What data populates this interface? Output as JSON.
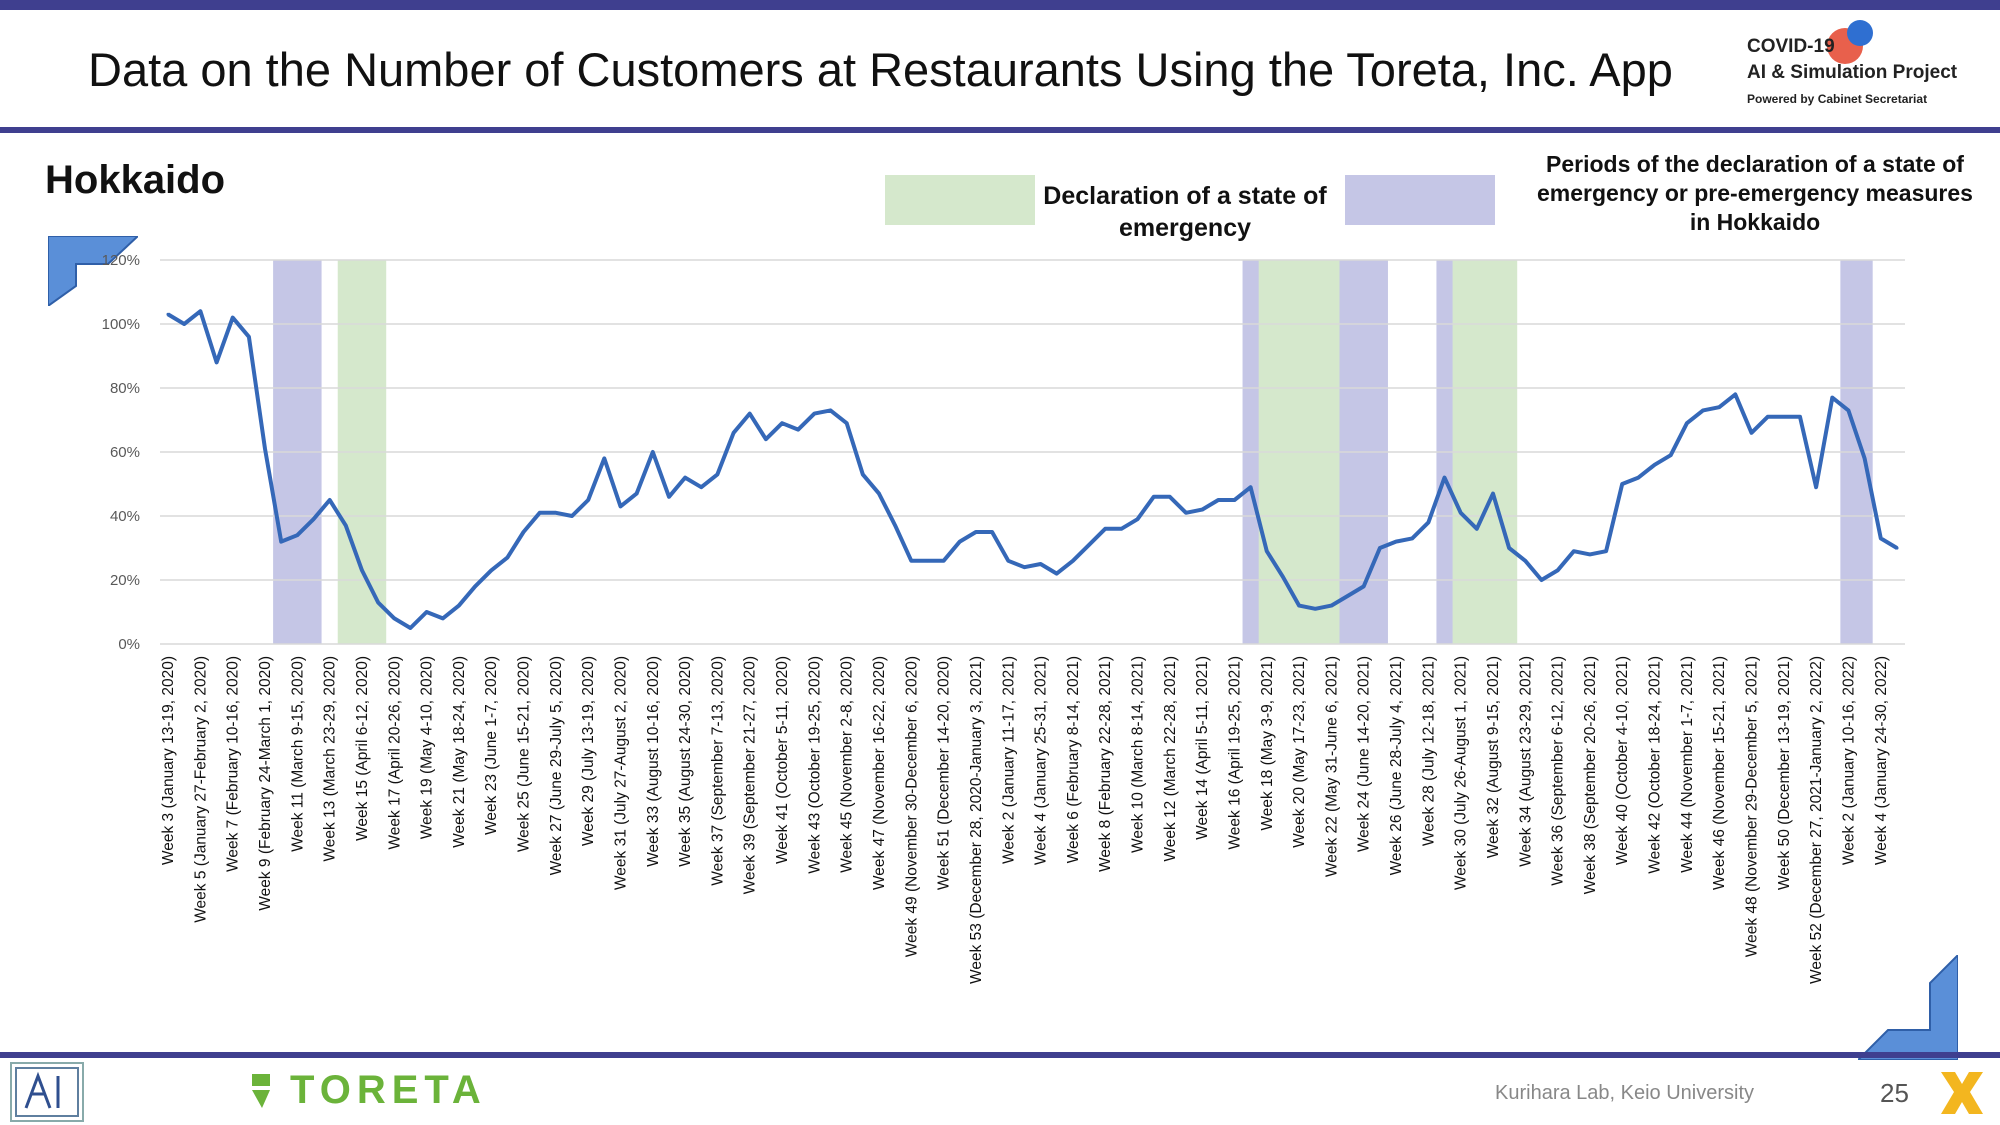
{
  "header": {
    "title": "Data on the Number of Customers at Restaurants Using the Toreta, Inc. App",
    "logo_line1": "COVID-19",
    "logo_line2": "AI & Simulation Project",
    "logo_line3": "Powered by Cabinet Secretariat"
  },
  "region": "Hokkaido",
  "legend": {
    "green_label": "Declaration of a state of emergency",
    "purple_label": "Periods of the declaration of a state of emergency or pre-emergency measures in Hokkaido"
  },
  "footer": {
    "brand": "TORETA",
    "lab": "Kurihara Lab, Keio University",
    "page": "25"
  },
  "colors": {
    "line": "#3568b8",
    "emergency": "#d5e8cc",
    "pre_emergency": "#c5c6e6",
    "accent": "#3f3f8f"
  },
  "chart_data": {
    "type": "line",
    "ylim": [
      0,
      1.2
    ],
    "yticks": [
      "0%",
      "20%",
      "40%",
      "60%",
      "80%",
      "100%",
      "120%"
    ],
    "grid": true,
    "x_labels": [
      "Week 3 (January 13-19, 2020)",
      "Week 5 (January 27-February 2, 2020)",
      "Week 7 (February 10-16, 2020)",
      "Week 9 (February 24-March 1, 2020)",
      "Week 11 (March 9-15, 2020)",
      "Week 13 (March 23-29, 2020)",
      "Week 15 (April 6-12, 2020)",
      "Week 17 (April 20-26, 2020)",
      "Week 19 (May 4-10, 2020)",
      "Week 21 (May 18-24, 2020)",
      "Week 23 (June 1-7, 2020)",
      "Week 25 (June 15-21, 2020)",
      "Week 27 (June 29-July 5, 2020)",
      "Week 29 (July 13-19, 2020)",
      "Week 31 (July 27-August 2, 2020)",
      "Week 33 (August 10-16, 2020)",
      "Week 35 (August 24-30, 2020)",
      "Week 37 (September 7-13, 2020)",
      "Week 39 (September 21-27, 2020)",
      "Week 41 (October 5-11, 2020)",
      "Week 43 (October 19-25, 2020)",
      "Week 45 (November 2-8, 2020)",
      "Week 47 (November 16-22, 2020)",
      "Week 49 (November 30-December 6, 2020)",
      "Week 51 (December 14-20, 2020)",
      "Week 53 (December 28, 2020-January 3, 2021)",
      "Week 2 (January 11-17, 2021)",
      "Week 4 (January 25-31, 2021)",
      "Week 6 (February 8-14, 2021)",
      "Week 8 (February 22-28, 2021)",
      "Week 10 (March 8-14, 2021)",
      "Week 12 (March 22-28, 2021)",
      "Week 14 (April 5-11, 2021)",
      "Week 16 (April 19-25, 2021)",
      "Week 18 (May 3-9, 2021)",
      "Week 20 (May 17-23, 2021)",
      "Week 22 (May 31-June 6, 2021)",
      "Week 24 (June 14-20, 2021)",
      "Week 26 (June 28-July 4, 2021)",
      "Week 28 (July 12-18, 2021)",
      "Week 30 (July 26-August 1, 2021)",
      "Week 32 (August 9-15, 2021)",
      "Week 34 (August 23-29, 2021)",
      "Week 36 (September 6-12, 2021)",
      "Week 38 (September 20-26, 2021)",
      "Week 40 (October 4-10, 2021)",
      "Week 42 (October 18-24, 2021)",
      "Week 44 (November 1-7, 2021)",
      "Week 46 (November 15-21, 2021)",
      "Week 48 (November 29-December 5, 2021)",
      "Week 50 (December 13-19, 2021)",
      "Week 52 (December 27, 2021-January 2, 2022)",
      "Week 2 (January 10-16, 2022)",
      "Week 4 (January 24-30, 2022)"
    ],
    "values": [
      1.03,
      1.0,
      1.04,
      0.88,
      1.02,
      0.96,
      0.61,
      0.32,
      0.34,
      0.39,
      0.45,
      0.37,
      0.23,
      0.13,
      0.08,
      0.05,
      0.1,
      0.08,
      0.12,
      0.18,
      0.23,
      0.27,
      0.35,
      0.41,
      0.41,
      0.4,
      0.45,
      0.58,
      0.43,
      0.47,
      0.6,
      0.46,
      0.52,
      0.49,
      0.53,
      0.66,
      0.72,
      0.64,
      0.69,
      0.67,
      0.72,
      0.73,
      0.69,
      0.53,
      0.47,
      0.37,
      0.26,
      0.26,
      0.26,
      0.32,
      0.35,
      0.35,
      0.26,
      0.24,
      0.25,
      0.22,
      0.26,
      0.31,
      0.36,
      0.36,
      0.39,
      0.46,
      0.46,
      0.41,
      0.42,
      0.45,
      0.45,
      0.49,
      0.29,
      0.21,
      0.12,
      0.11,
      0.12,
      0.15,
      0.18,
      0.3,
      0.32,
      0.33,
      0.38,
      0.52,
      0.41,
      0.36,
      0.47,
      0.3,
      0.26,
      0.2,
      0.23,
      0.29,
      0.28,
      0.29,
      0.5,
      0.52,
      0.56,
      0.59,
      0.69,
      0.73,
      0.74,
      0.78,
      0.66,
      0.71,
      0.71,
      0.71,
      0.49,
      0.77,
      0.73,
      0.58,
      0.33,
      0.3
    ],
    "pre_emergency_periods": [
      [
        7,
        9
      ],
      [
        67,
        68
      ],
      [
        73,
        75
      ],
      [
        79,
        80
      ],
      [
        104,
        105
      ]
    ],
    "emergency_periods": [
      [
        11,
        13
      ],
      [
        68,
        72
      ],
      [
        80,
        83
      ]
    ]
  }
}
